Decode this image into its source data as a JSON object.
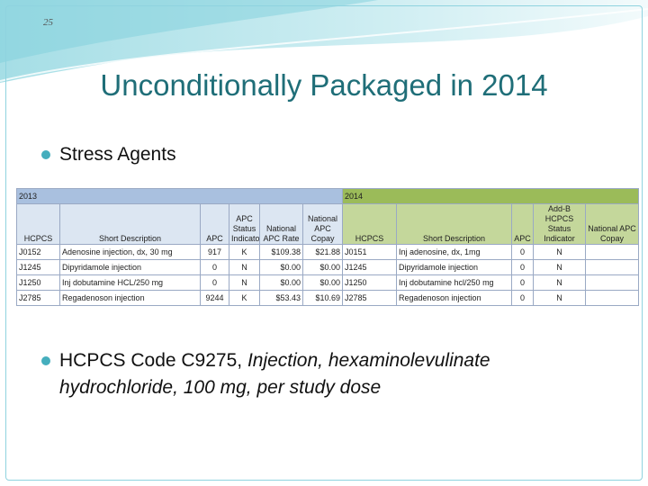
{
  "slide": {
    "page_number": "25",
    "title": "Unconditionally Packaged in 2014",
    "bullet1": "Stress Agents",
    "bullet2_line1_pre": "HCPCS Code C9275, ",
    "bullet2_line1_italic": "Injection, hexaminolevulinate",
    "bullet2_line2_italic": "hydrochloride, 100 mg, per study dose"
  },
  "table": {
    "year_2013": "2013",
    "year_2014": "2014",
    "headers_2013": [
      "HCPCS",
      "Short Description",
      "APC",
      "APC Status Indicator",
      "National APC Rate",
      "National APC Copay"
    ],
    "headers_2014": [
      "HCPCS",
      "Short Description",
      "APC",
      "Add-B HCPCS Status Indicator",
      "National APC Copay"
    ],
    "rows": [
      {
        "hcpcs13": "J0152",
        "desc13": "Adenosine injection, dx, 30 mg",
        "apc13": "917",
        "si13": "K",
        "rate13": "$109.38",
        "copay13": "$21.88",
        "hcpcs14": "J0151",
        "desc14": "Inj adenosine, dx, 1mg",
        "apc14": "0",
        "si14": "N",
        "copay14": ""
      },
      {
        "hcpcs13": "J1245",
        "desc13": "Dipyridamole injection",
        "apc13": "0",
        "si13": "N",
        "rate13": "$0.00",
        "copay13": "$0.00",
        "hcpcs14": "J1245",
        "desc14": "Dipyridamole injection",
        "apc14": "0",
        "si14": "N",
        "copay14": ""
      },
      {
        "hcpcs13": "J1250",
        "desc13": "Inj dobutamine HCL/250 mg",
        "apc13": "0",
        "si13": "N",
        "rate13": "$0.00",
        "copay13": "$0.00",
        "hcpcs14": "J1250",
        "desc14": "Inj dobutamine hcl/250 mg",
        "apc14": "0",
        "si14": "N",
        "copay14": ""
      },
      {
        "hcpcs13": "J2785",
        "desc13": "Regadenoson injection",
        "apc13": "9244",
        "si13": "K",
        "rate13": "$53.43",
        "copay13": "$10.69",
        "hcpcs14": "J2785",
        "desc14": "Regadenoson injection",
        "apc14": "0",
        "si14": "N",
        "copay14": ""
      }
    ]
  },
  "colors": {
    "title": "#1f6e78",
    "bullet": "#45aebd",
    "header_2013": "#a9c0df",
    "header_2014": "#9bbb59"
  }
}
